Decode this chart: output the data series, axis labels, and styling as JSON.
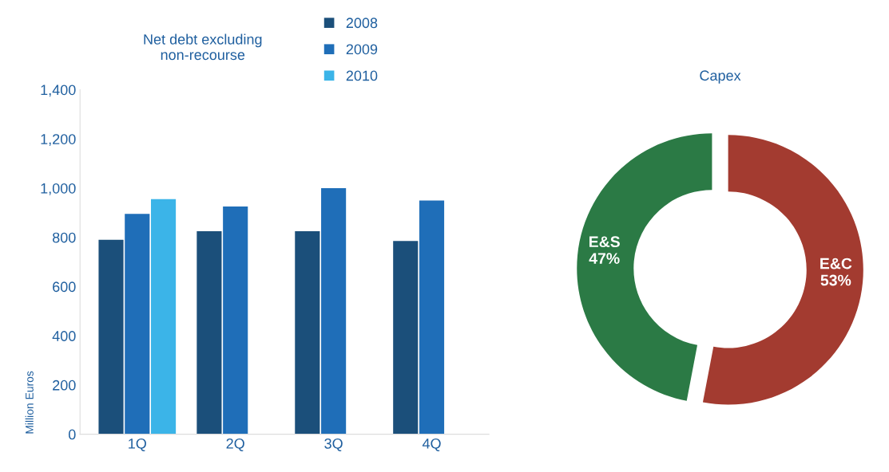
{
  "chart_data": [
    {
      "type": "bar",
      "title": "Net debt excluding\nnon-recourse",
      "ylabel": "Million Euros",
      "categories": [
        "1Q",
        "2Q",
        "3Q",
        "4Q"
      ],
      "series": [
        {
          "name": "2008",
          "color": "#1b4f7a",
          "values": [
            790,
            825,
            825,
            785
          ]
        },
        {
          "name": "2009",
          "color": "#1f6eb8",
          "values": [
            895,
            925,
            1000,
            950
          ]
        },
        {
          "name": "2010",
          "color": "#3bb4e8",
          "values": [
            955,
            null,
            null,
            null
          ]
        }
      ],
      "ylim": [
        0,
        1400
      ],
      "yticks": [
        0,
        {
          "value": 200,
          "label": "200"
        },
        {
          "value": 400,
          "label": "400"
        },
        {
          "value": 600,
          "label": "600"
        },
        {
          "value": 800,
          "label": "800"
        },
        {
          "value": 1000,
          "label": "1,000"
        },
        {
          "value": 1200,
          "label": "1,200"
        },
        {
          "value": 1400,
          "label": "1,400"
        }
      ],
      "grid": false,
      "legend": "top right"
    },
    {
      "type": "donut",
      "title": "Capex",
      "categories": [
        "E&C",
        "E&S"
      ],
      "values": [
        53,
        47
      ],
      "value_labels": [
        "53%",
        "47%"
      ],
      "colors": [
        "#a33b30",
        "#2b7a45"
      ]
    }
  ]
}
